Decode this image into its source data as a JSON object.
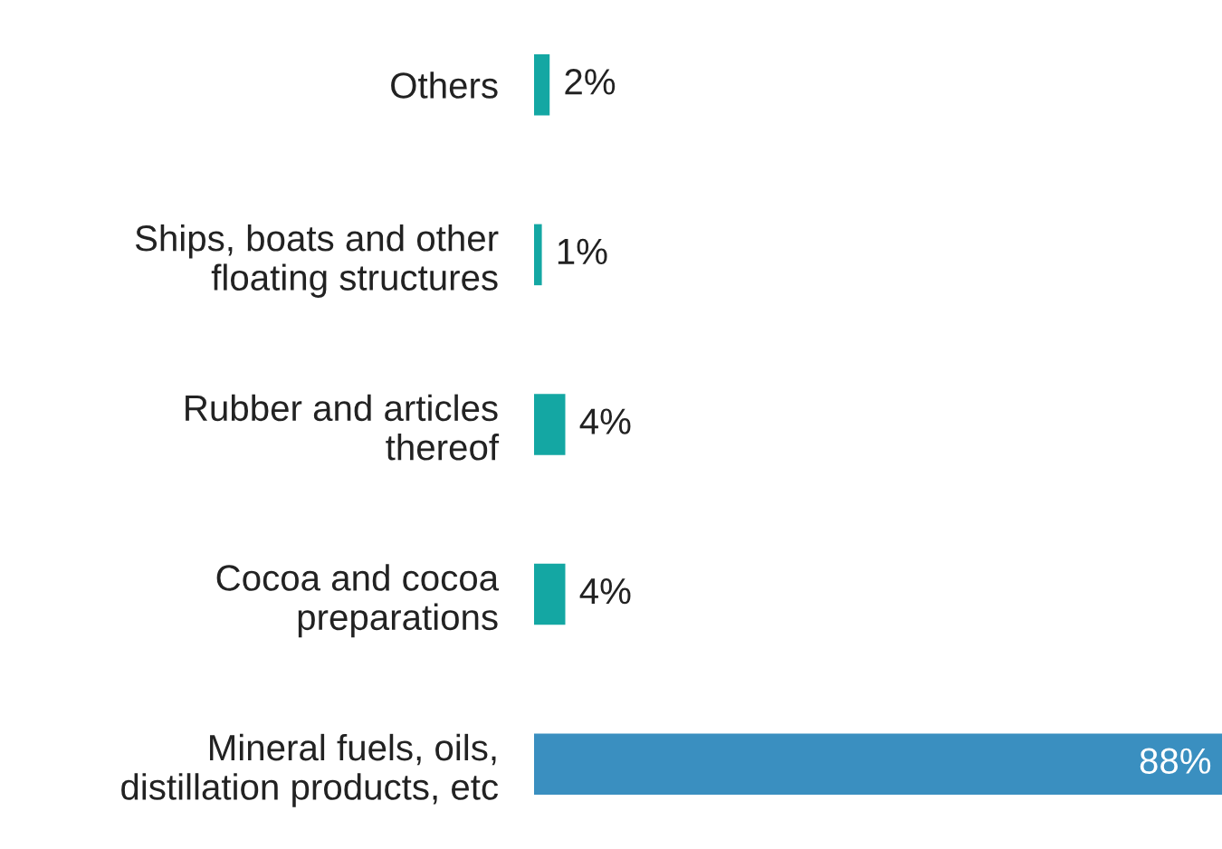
{
  "chart_data": {
    "type": "bar",
    "orientation": "horizontal",
    "categories": [
      "Others",
      "Ships, boats and other\nfloating structures",
      "Rubber and articles\nthereof",
      "Cocoa and cocoa\npreparations",
      "Mineral fuels, oils,\ndistillation products, etc"
    ],
    "values": [
      2,
      1,
      4,
      4,
      88
    ],
    "value_labels": [
      "2%",
      "1%",
      "4%",
      "4%",
      "88%"
    ],
    "colors": [
      "#14a7a3",
      "#14a7a3",
      "#14a7a3",
      "#14a7a3",
      "#3a8fc0"
    ],
    "grid": false,
    "legend": false
  }
}
